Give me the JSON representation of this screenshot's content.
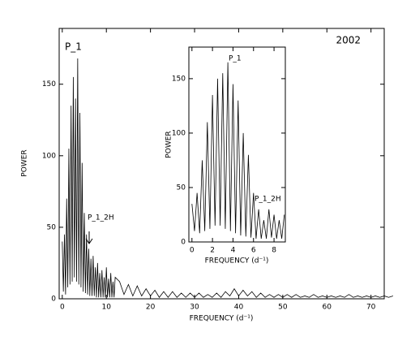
{
  "chart_data": [
    {
      "type": "line",
      "xlabel": "FREQUENCY (d⁻¹)",
      "ylabel": "POWER",
      "annotations": [
        "P_1",
        "2002",
        "P_1_2H"
      ],
      "x": [
        0,
        0.25,
        0.5,
        0.75,
        1,
        1.25,
        1.5,
        1.75,
        2,
        2.25,
        2.5,
        2.75,
        3,
        3.25,
        3.5,
        3.75,
        4,
        4.25,
        4.5,
        4.75,
        5,
        5.25,
        5.5,
        5.75,
        6,
        6.25,
        6.5,
        6.75,
        7,
        7.25,
        7.5,
        7.75,
        8,
        8.25,
        8.5,
        8.75,
        9,
        9.25,
        9.5,
        9.75,
        10,
        10.25,
        10.5,
        10.75,
        11,
        11.25,
        11.5,
        11.75,
        12,
        13,
        14,
        15,
        16,
        17,
        18,
        19,
        20,
        21,
        22,
        23,
        24,
        25,
        26,
        27,
        28,
        29,
        30,
        31,
        32,
        33,
        34,
        35,
        36,
        37,
        38,
        39,
        40,
        41,
        42,
        43,
        44,
        45,
        46,
        47,
        48,
        49,
        50,
        51,
        52,
        53,
        54,
        55,
        56,
        57,
        58,
        59,
        60,
        61,
        62,
        63,
        64,
        65,
        66,
        67,
        68,
        69,
        70,
        71,
        72,
        73,
        74,
        75
      ],
      "series": [
        {
          "color": "#000000",
          "values": [
            40,
            5,
            45,
            3,
            70,
            8,
            105,
            10,
            135,
            12,
            155,
            15,
            140,
            12,
            168,
            10,
            130,
            8,
            95,
            5,
            60,
            4,
            45,
            3,
            35,
            2,
            28,
            2,
            30,
            2,
            22,
            1,
            25,
            1,
            18,
            1,
            20,
            1,
            15,
            1,
            22,
            1,
            14,
            1,
            18,
            1,
            12,
            1,
            15,
            12,
            3,
            10,
            2,
            9,
            2,
            7,
            2,
            6,
            1,
            5,
            1,
            5,
            1,
            4,
            1,
            4,
            1,
            4,
            1,
            3,
            1,
            4,
            1,
            5,
            2,
            7,
            2,
            6,
            2,
            5,
            1,
            4,
            1,
            3,
            1,
            3,
            1,
            3,
            1,
            3,
            1,
            2,
            1,
            3,
            1,
            2,
            1,
            2,
            1,
            2,
            1,
            3,
            1,
            2,
            1,
            2,
            1,
            2,
            1,
            2,
            1,
            2
          ]
        }
      ],
      "xlim": [
        -0.7,
        73
      ],
      "ylim": [
        0,
        189
      ],
      "xticks": [
        0,
        10,
        20,
        30,
        40,
        50,
        60,
        70
      ],
      "yticks": [
        0,
        50,
        100,
        150
      ]
    },
    {
      "type": "line",
      "xlabel": "FREQUENCY (d⁻¹)",
      "ylabel": "POWER",
      "annotations": [
        "P_1",
        "P_1_2H"
      ],
      "x": [
        0,
        0.25,
        0.5,
        0.75,
        1,
        1.25,
        1.5,
        1.75,
        2,
        2.25,
        2.5,
        2.75,
        3,
        3.25,
        3.5,
        3.75,
        4,
        4.25,
        4.5,
        4.75,
        5,
        5.25,
        5.5,
        5.75,
        6,
        6.25,
        6.5,
        6.75,
        7,
        7.25,
        7.5,
        7.75,
        8,
        8.25,
        8.5,
        8.75,
        9
      ],
      "series": [
        {
          "color": "#000000",
          "values": [
            35,
            10,
            45,
            8,
            75,
            10,
            110,
            12,
            135,
            15,
            150,
            15,
            155,
            12,
            165,
            10,
            145,
            8,
            130,
            6,
            100,
            5,
            80,
            4,
            45,
            3,
            30,
            3,
            20,
            3,
            30,
            4,
            25,
            3,
            20,
            3,
            25
          ]
        }
      ],
      "xlim": [
        -0.3,
        9.1
      ],
      "ylim": [
        0,
        179
      ],
      "xticks": [
        0,
        2,
        4,
        6,
        8
      ],
      "yticks": [
        0,
        50,
        100,
        150
      ]
    }
  ]
}
